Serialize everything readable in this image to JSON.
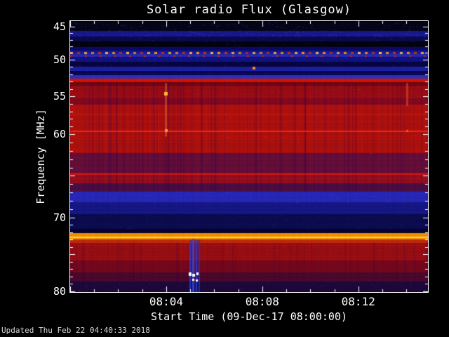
{
  "footer": {
    "updated": "Updated Thu Feb 22 04:40:33 2018"
  },
  "chart_data": {
    "type": "heatmap",
    "title": "Solar radio Flux (Glasgow)",
    "xlabel": "Start Time (09-Dec-17 08:00:00)",
    "ylabel": "Frequency [MHz]",
    "description": "Radio spectrogram: time on x (minutes after 08:00 UT), frequency 45-80 MHz increasing downward on y; horizontal interference bands in blue/red/orange over black, with vertical solar/interference streak features.",
    "colors": {
      "background": "#000000",
      "frame": "#ffffff",
      "text": "#ffffff"
    },
    "x_axis": {
      "unit": "minutes after 08:00:00",
      "range": [
        0,
        14.9
      ],
      "minor_step": 1,
      "major_ticks": [
        {
          "t": 4,
          "label": "08:04"
        },
        {
          "t": 8,
          "label": "08:08"
        },
        {
          "t": 12,
          "label": "08:12"
        }
      ]
    },
    "y_axis": {
      "unit": "MHz",
      "direction": "down",
      "tick_min": 45,
      "tick_max": 80,
      "minor_step": 1,
      "labeled_ticks": [
        45,
        50,
        55,
        60,
        70,
        80
      ],
      "anchors": {
        "f": [
          45,
          50,
          55,
          60,
          70,
          80
        ],
        "frac": [
          0.021,
          0.142,
          0.277,
          0.417,
          0.725,
          0.997
        ]
      }
    },
    "bands": [
      {
        "f0": 44.2,
        "f1": 45.6,
        "color": "#06061a",
        "speckle": "#2a3ad0",
        "density": 180
      },
      {
        "f0": 45.6,
        "f1": 46.5,
        "color": "#1b1b9a",
        "speckle": "#4858e0",
        "density": 140
      },
      {
        "f0": 46.5,
        "f1": 47.2,
        "color": "#0b0b52",
        "speckle": "#2a3ac0",
        "density": 60
      },
      {
        "f0": 47.2,
        "f1": 48.1,
        "color": "#040414",
        "speckle": "#20309a",
        "density": 50
      },
      {
        "f0": 48.1,
        "f1": 48.6,
        "color": "#0d0d70"
      },
      {
        "f0": 48.6,
        "f1": 49.05,
        "color": "#1a1aa6"
      },
      {
        "f0": 49.05,
        "f1": 49.6,
        "color": "#2b2bb6",
        "speckle": "#4a5ae6",
        "density": 80
      },
      {
        "f0": 49.6,
        "f1": 50.3,
        "color": "#14148a"
      },
      {
        "f0": 50.3,
        "f1": 51.0,
        "color": "#070746",
        "speckle": "#2233bb",
        "density": 50
      },
      {
        "f0": 51.0,
        "f1": 51.6,
        "color": "#2222ae"
      },
      {
        "f0": 51.6,
        "f1": 52.15,
        "color": "#0a0a5e"
      },
      {
        "f0": 52.15,
        "f1": 52.6,
        "color": "#3333c0"
      },
      {
        "f0": 52.6,
        "f1": 53.1,
        "color": "#e11505"
      },
      {
        "f0": 53.1,
        "f1": 53.6,
        "color": "#7c0815"
      },
      {
        "f0": 53.6,
        "f1": 55.3,
        "color": "#a60e16",
        "speckle": "#d03020",
        "density": 120
      },
      {
        "f0": 55.3,
        "f1": 56.1,
        "color": "#8c0a22"
      },
      {
        "f0": 56.1,
        "f1": 62.3,
        "color": "#bb1310",
        "speckle": "#e03524",
        "density": 300
      },
      {
        "f0": 62.3,
        "f1": 64.6,
        "color": "#6e103e",
        "speckle": "#98203c",
        "density": 90
      },
      {
        "f0": 64.6,
        "f1": 65.9,
        "color": "#a41020"
      },
      {
        "f0": 65.9,
        "f1": 66.9,
        "color": "#531048"
      },
      {
        "f0": 66.9,
        "f1": 68.2,
        "color": "#2a2ac6",
        "speckle": "#4a55e8",
        "density": 120
      },
      {
        "f0": 68.2,
        "f1": 69.6,
        "color": "#191992"
      },
      {
        "f0": 69.6,
        "f1": 71.5,
        "color": "#0d0d55",
        "speckle": "#3a2a9a",
        "density": 110
      },
      {
        "f0": 71.5,
        "f1": 72.15,
        "color": "#090432"
      },
      {
        "f0": 72.15,
        "f1": 72.95,
        "color": "#ff9a00"
      },
      {
        "f0": 72.95,
        "f1": 73.45,
        "color": "#c63008"
      },
      {
        "f0": 73.45,
        "f1": 75.85,
        "color": "#a51016",
        "speckle": "#cc2c1e",
        "density": 150
      },
      {
        "f0": 75.85,
        "f1": 77.45,
        "color": "#7f0920"
      },
      {
        "f0": 77.45,
        "f1": 78.65,
        "color": "#500a30",
        "speckle": "#7a1430",
        "density": 60
      },
      {
        "f0": 78.65,
        "f1": 80.5,
        "color": "#200a3e",
        "speckle": "#3040c0",
        "density": 130
      }
    ],
    "features": {
      "striations": [
        {
          "f0": 53.1,
          "f1": 66.8,
          "count": 150,
          "color": "#2a0050",
          "maxAlpha": 0.28
        },
        {
          "f0": 56.0,
          "f1": 62.3,
          "count": 90,
          "color": "#ff2814",
          "maxAlpha": 0.1
        },
        {
          "f0": 73.4,
          "f1": 78.6,
          "count": 70,
          "color": "#300246",
          "maxAlpha": 0.25
        }
      ],
      "lines": [
        {
          "f": 59.55,
          "color": "#ff2a10",
          "alpha": 0.8,
          "px": 2
        },
        {
          "f": 64.75,
          "color": "#e02014",
          "alpha": 0.7,
          "px": 2
        },
        {
          "f": 57.3,
          "color": "#e82812",
          "alpha": 0.4,
          "px": 1
        },
        {
          "f": 72.55,
          "color": "#ffd34a",
          "alpha": 0.9,
          "px": 2
        }
      ],
      "dashed_lines": [
        {
          "f": 48.8,
          "period": 10,
          "dash": 4,
          "px": 3,
          "colors": [
            "#ff9900",
            "#d23000",
            "#ffcc33"
          ]
        },
        {
          "f": 49.35,
          "period": 21,
          "dash": 3,
          "px": 2,
          "colors": [
            "#c22810"
          ]
        }
      ],
      "vstreaks": [
        {
          "t": 5.2,
          "f0": 73.0,
          "f1": 80.4,
          "px": 14,
          "color": "#202090",
          "alpha": 0.25
        },
        {
          "t": 5.0,
          "f0": 73.2,
          "f1": 80.4,
          "px": 2,
          "color": "#2840dc",
          "alpha": 0.8
        },
        {
          "t": 5.13,
          "f0": 72.9,
          "f1": 80.4,
          "px": 3,
          "color": "#3048e0",
          "alpha": 0.85
        },
        {
          "t": 5.26,
          "f0": 73.2,
          "f1": 80.4,
          "px": 2,
          "color": "#2840dc",
          "alpha": 0.8
        },
        {
          "t": 5.38,
          "f0": 73.0,
          "f1": 80.4,
          "px": 2,
          "color": "#2438c8",
          "alpha": 0.7
        },
        {
          "t": 4.0,
          "f0": 53.2,
          "f1": 60.3,
          "px": 3,
          "color": "#ff7830",
          "alpha": 0.45
        },
        {
          "t": 14.05,
          "f0": 53.2,
          "f1": 56.3,
          "px": 3,
          "color": "#ff5a28",
          "alpha": 0.45
        }
      ],
      "points": [
        {
          "t": 7.65,
          "f": 51.2,
          "color": "#ff8822",
          "px": 4
        },
        {
          "t": 4.0,
          "f": 54.7,
          "color": "#ffbb44",
          "px": 5
        },
        {
          "t": 4.0,
          "f": 59.55,
          "color": "#ff9933",
          "px": 4
        },
        {
          "t": 14.05,
          "f": 59.6,
          "color": "#ee5522",
          "px": 3
        }
      ],
      "white_dashes": [
        {
          "t": 5.0,
          "f": 77.7,
          "w": 4,
          "h": 5
        },
        {
          "t": 5.15,
          "f": 77.8,
          "w": 4,
          "h": 4
        },
        {
          "t": 5.3,
          "f": 77.6,
          "w": 3,
          "h": 4
        },
        {
          "t": 5.12,
          "f": 78.4,
          "w": 3,
          "h": 3
        },
        {
          "t": 5.28,
          "f": 78.5,
          "w": 3,
          "h": 3
        }
      ]
    }
  }
}
